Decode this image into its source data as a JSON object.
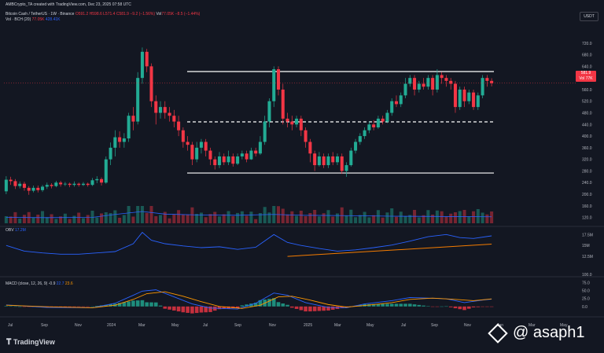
{
  "header": {
    "author_line": "AMBCrypto_TA created with TradingView.com, Dec 23, 2025 07:58 UTC",
    "symbol": "Bitcoin Cash / TetherUS · 1W · Binance",
    "open": "O591.2",
    "high": "H598.6",
    "low": "L571.4",
    "close": "C581.9",
    "change": "−9.2 (−1.56%)",
    "vol_label": "Vol",
    "vol_value": "77.05K",
    "vol_change": "−8.5 (−1.44%)",
    "vol_indicator": "Vol · BCH (20)",
    "vol_now": "77.05K",
    "vol_ma": "428.41K"
  },
  "price_tag": {
    "price": "581.9",
    "vol": "Vol 77K"
  },
  "currency": "USDT",
  "obv": {
    "label": "OBV",
    "value": "17.2M"
  },
  "macd": {
    "label": "MACD (close, 12, 26, 9)",
    "hist": "-0.9",
    "macd": "22.7",
    "signal": "23.6"
  },
  "colors": {
    "up": "#22ab94",
    "down": "#f23645",
    "obv": "#2962ff",
    "signal": "#ff9800",
    "trendline": "#f57c00",
    "level": "#ffffff"
  },
  "footer": {
    "brand": "TradingView"
  },
  "watermark": "@ asaph1",
  "chart_data": {
    "type": "candlestick",
    "price_axis": {
      "ylim": [
        100,
        760
      ],
      "ticks": [
        "720.0",
        "680.0",
        "640.0",
        "600.0",
        "560.0",
        "520.0",
        "480.0",
        "440.0",
        "400.0",
        "360.0",
        "320.0",
        "280.0",
        "240.0",
        "200.0",
        "160.0",
        "120.0"
      ]
    },
    "obv_axis": {
      "ylim": [
        10,
        19
      ],
      "ticks": [
        "17.5M",
        "15M",
        "12.5M"
      ]
    },
    "macd_axis": {
      "ylim": [
        -25,
        110
      ],
      "ticks": [
        "100.0",
        "75.0",
        "50.0",
        "25.0",
        "0.0"
      ]
    },
    "x_labels": [
      "Jul",
      "Sep",
      "Nov",
      "2024",
      "Mar",
      "May",
      "Jul",
      "Sep",
      "Nov",
      "2025",
      "Mar",
      "May",
      "Jul",
      "Sep",
      "Nov",
      "Jan",
      "Mar",
      "May"
    ],
    "levels": [
      {
        "price": 622,
        "style": "solid"
      },
      {
        "price": 449,
        "style": "dashed"
      },
      {
        "price": 273,
        "style": "solid"
      }
    ],
    "candles": [
      [
        1,
        210,
        250,
        200,
        262
      ],
      [
        2,
        250,
        245,
        232,
        260
      ],
      [
        3,
        245,
        228,
        218,
        252
      ],
      [
        4,
        228,
        236,
        220,
        244
      ],
      [
        5,
        236,
        222,
        212,
        243
      ],
      [
        6,
        222,
        212,
        198,
        228
      ],
      [
        7,
        212,
        222,
        206,
        230
      ],
      [
        8,
        222,
        214,
        206,
        230
      ],
      [
        9,
        214,
        226,
        208,
        232
      ],
      [
        10,
        226,
        232,
        218,
        240
      ],
      [
        11,
        232,
        228,
        220,
        238
      ],
      [
        12,
        228,
        240,
        224,
        246
      ],
      [
        13,
        240,
        234,
        226,
        246
      ],
      [
        14,
        234,
        236,
        228,
        242
      ],
      [
        15,
        236,
        232,
        224,
        240
      ],
      [
        16,
        232,
        236,
        226,
        244
      ],
      [
        17,
        236,
        232,
        226,
        240
      ],
      [
        18,
        232,
        236,
        228,
        242
      ],
      [
        19,
        236,
        232,
        226,
        240
      ],
      [
        20,
        232,
        248,
        228,
        256
      ],
      [
        21,
        248,
        252,
        238,
        262
      ],
      [
        22,
        252,
        240,
        230,
        258
      ],
      [
        23,
        240,
        320,
        236,
        330
      ],
      [
        24,
        320,
        360,
        300,
        378
      ],
      [
        25,
        360,
        396,
        330,
        420
      ],
      [
        26,
        396,
        380,
        360,
        416
      ],
      [
        27,
        380,
        392,
        360,
        410
      ],
      [
        28,
        392,
        470,
        380,
        480
      ],
      [
        29,
        470,
        450,
        420,
        500
      ],
      [
        30,
        450,
        600,
        440,
        620
      ],
      [
        31,
        600,
        690,
        580,
        705
      ],
      [
        32,
        690,
        640,
        620,
        700
      ],
      [
        33,
        640,
        520,
        500,
        650
      ],
      [
        34,
        520,
        480,
        440,
        540
      ],
      [
        35,
        480,
        500,
        460,
        520
      ],
      [
        36,
        500,
        480,
        460,
        520
      ],
      [
        37,
        480,
        470,
        450,
        500
      ],
      [
        38,
        470,
        450,
        430,
        490
      ],
      [
        39,
        450,
        420,
        400,
        470
      ],
      [
        40,
        420,
        380,
        360,
        430
      ],
      [
        41,
        380,
        370,
        350,
        400
      ],
      [
        42,
        370,
        320,
        300,
        380
      ],
      [
        43,
        320,
        360,
        310,
        380
      ],
      [
        44,
        360,
        380,
        340,
        390
      ],
      [
        45,
        380,
        350,
        330,
        390
      ],
      [
        46,
        350,
        320,
        300,
        360
      ],
      [
        47,
        320,
        300,
        285,
        330
      ],
      [
        48,
        300,
        330,
        290,
        345
      ],
      [
        49,
        330,
        310,
        300,
        340
      ],
      [
        50,
        310,
        330,
        300,
        350
      ],
      [
        51,
        330,
        305,
        295,
        340
      ],
      [
        52,
        305,
        330,
        300,
        340
      ],
      [
        53,
        330,
        340,
        320,
        350
      ],
      [
        54,
        340,
        320,
        310,
        350
      ],
      [
        55,
        320,
        350,
        318,
        360
      ],
      [
        56,
        350,
        340,
        330,
        360
      ],
      [
        57,
        340,
        380,
        335,
        400
      ],
      [
        58,
        380,
        450,
        370,
        470
      ],
      [
        59,
        450,
        520,
        430,
        530
      ],
      [
        60,
        520,
        630,
        500,
        640
      ],
      [
        61,
        630,
        560,
        540,
        640
      ],
      [
        62,
        560,
        460,
        440,
        580
      ],
      [
        63,
        460,
        450,
        430,
        480
      ],
      [
        64,
        450,
        440,
        420,
        470
      ],
      [
        65,
        440,
        460,
        430,
        470
      ],
      [
        66,
        460,
        420,
        400,
        470
      ],
      [
        67,
        420,
        380,
        360,
        430
      ],
      [
        68,
        380,
        340,
        310,
        390
      ],
      [
        69,
        340,
        300,
        280,
        350
      ],
      [
        70,
        300,
        330,
        295,
        345
      ],
      [
        71,
        330,
        300,
        290,
        340
      ],
      [
        72,
        300,
        330,
        290,
        340
      ],
      [
        73,
        330,
        310,
        300,
        345
      ],
      [
        74,
        310,
        330,
        300,
        340
      ],
      [
        75,
        330,
        280,
        270,
        340
      ],
      [
        76,
        280,
        300,
        260,
        310
      ],
      [
        77,
        300,
        350,
        295,
        360
      ],
      [
        78,
        350,
        380,
        340,
        390
      ],
      [
        79,
        380,
        400,
        370,
        410
      ],
      [
        80,
        400,
        420,
        390,
        430
      ],
      [
        81,
        420,
        440,
        410,
        450
      ],
      [
        82,
        440,
        430,
        420,
        455
      ],
      [
        83,
        430,
        460,
        425,
        470
      ],
      [
        84,
        460,
        450,
        440,
        470
      ],
      [
        85,
        450,
        480,
        445,
        490
      ],
      [
        86,
        480,
        520,
        470,
        530
      ],
      [
        87,
        520,
        510,
        500,
        540
      ],
      [
        88,
        510,
        540,
        500,
        550
      ],
      [
        89,
        540,
        580,
        530,
        600
      ],
      [
        90,
        580,
        600,
        570,
        610
      ],
      [
        91,
        600,
        560,
        540,
        610
      ],
      [
        92,
        560,
        580,
        550,
        590
      ],
      [
        93,
        580,
        570,
        560,
        600
      ],
      [
        94,
        570,
        600,
        560,
        610
      ],
      [
        95,
        600,
        560,
        540,
        610
      ],
      [
        96,
        560,
        610,
        550,
        630
      ],
      [
        97,
        610,
        600,
        580,
        620
      ],
      [
        98,
        600,
        590,
        570,
        610
      ],
      [
        99,
        590,
        580,
        560,
        600
      ],
      [
        100,
        580,
        500,
        480,
        590
      ],
      [
        101,
        500,
        560,
        490,
        570
      ],
      [
        102,
        560,
        520,
        500,
        570
      ],
      [
        103,
        520,
        550,
        510,
        560
      ],
      [
        104,
        550,
        500,
        490,
        560
      ],
      [
        105,
        500,
        540,
        490,
        550
      ],
      [
        106,
        540,
        600,
        530,
        610
      ],
      [
        107,
        600,
        590,
        570,
        610
      ],
      [
        108,
        590,
        582,
        571,
        599
      ]
    ],
    "obv": [
      [
        1,
        15.0
      ],
      [
        5,
        13.7
      ],
      [
        9,
        13.3
      ],
      [
        13,
        13.0
      ],
      [
        17,
        13.0
      ],
      [
        21,
        13.3
      ],
      [
        25,
        13.6
      ],
      [
        29,
        15.4
      ],
      [
        31,
        18.0
      ],
      [
        33,
        16.2
      ],
      [
        36,
        15.4
      ],
      [
        40,
        14.9
      ],
      [
        44,
        14.5
      ],
      [
        48,
        14.7
      ],
      [
        52,
        14.1
      ],
      [
        56,
        14.6
      ],
      [
        60,
        17.5
      ],
      [
        63,
        15.7
      ],
      [
        66,
        15.0
      ],
      [
        70,
        14.3
      ],
      [
        74,
        13.7
      ],
      [
        78,
        14.0
      ],
      [
        82,
        14.5
      ],
      [
        86,
        15.1
      ],
      [
        90,
        16.0
      ],
      [
        94,
        17.0
      ],
      [
        98,
        17.5
      ],
      [
        101,
        16.8
      ],
      [
        104,
        16.6
      ],
      [
        108,
        17.2
      ]
    ],
    "obv_trendline": [
      [
        63,
        12.5
      ],
      [
        108,
        15.3
      ]
    ],
    "macd_line": [
      [
        1,
        5
      ],
      [
        10,
        -3
      ],
      [
        20,
        -4
      ],
      [
        25,
        10
      ],
      [
        29,
        35
      ],
      [
        31,
        48
      ],
      [
        34,
        52
      ],
      [
        38,
        30
      ],
      [
        42,
        8
      ],
      [
        46,
        -5
      ],
      [
        52,
        -8
      ],
      [
        56,
        10
      ],
      [
        60,
        42
      ],
      [
        63,
        35
      ],
      [
        67,
        12
      ],
      [
        72,
        -3
      ],
      [
        76,
        -4
      ],
      [
        80,
        8
      ],
      [
        86,
        18
      ],
      [
        90,
        28
      ],
      [
        94,
        26
      ],
      [
        98,
        24
      ],
      [
        102,
        12
      ],
      [
        106,
        20
      ],
      [
        108,
        22.7
      ]
    ],
    "signal_line": [
      [
        1,
        4
      ],
      [
        10,
        -1
      ],
      [
        20,
        -4
      ],
      [
        25,
        4
      ],
      [
        29,
        22
      ],
      [
        32,
        40
      ],
      [
        36,
        46
      ],
      [
        40,
        32
      ],
      [
        44,
        15
      ],
      [
        48,
        0
      ],
      [
        53,
        -6
      ],
      [
        57,
        4
      ],
      [
        61,
        30
      ],
      [
        64,
        32
      ],
      [
        68,
        20
      ],
      [
        72,
        6
      ],
      [
        76,
        -2
      ],
      [
        80,
        3
      ],
      [
        86,
        12
      ],
      [
        90,
        22
      ],
      [
        95,
        26
      ],
      [
        100,
        22
      ],
      [
        104,
        18
      ],
      [
        108,
        23.6
      ]
    ],
    "volume_ma": [
      [
        1,
        150
      ],
      [
        10,
        148
      ],
      [
        20,
        150
      ],
      [
        25,
        175
      ],
      [
        31,
        200
      ],
      [
        36,
        178
      ],
      [
        44,
        170
      ],
      [
        52,
        168
      ],
      [
        60,
        175
      ],
      [
        66,
        168
      ],
      [
        76,
        165
      ],
      [
        86,
        160
      ],
      [
        96,
        158
      ],
      [
        108,
        155
      ]
    ]
  }
}
